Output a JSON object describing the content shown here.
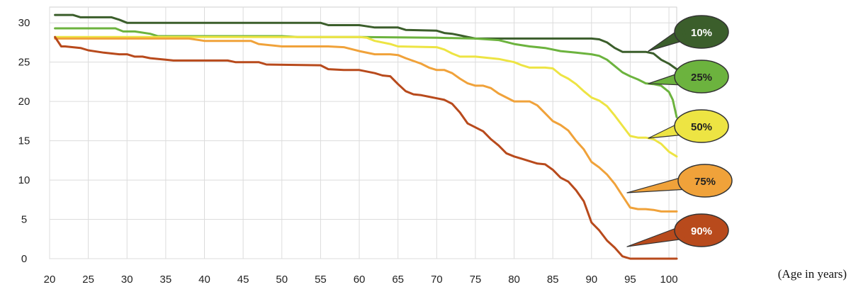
{
  "chart_data": {
    "type": "line",
    "title": "",
    "xlabel": "(Age in years)",
    "ylabel": "",
    "xlim": [
      20,
      101
    ],
    "ylim": [
      0,
      30
    ],
    "xticks": [
      20,
      25,
      30,
      35,
      40,
      45,
      50,
      55,
      60,
      65,
      70,
      75,
      80,
      85,
      90,
      95,
      100
    ],
    "yticks": [
      0,
      5,
      10,
      15,
      20,
      25,
      30
    ],
    "grid": true,
    "legend": "callouts-right",
    "series": [
      {
        "name": "10%",
        "color": "#3b5e2b",
        "label_color": "#ffffff",
        "x": [
          20.7,
          23,
          24,
          26,
          28,
          29,
          30,
          40,
          50,
          55,
          56,
          60,
          62,
          65,
          66,
          70,
          71,
          72,
          73,
          74,
          75,
          80,
          85,
          90,
          91,
          92,
          93,
          94,
          96,
          97,
          98,
          99,
          100,
          101
        ],
        "y": [
          31,
          31,
          30.7,
          30.7,
          30.7,
          30.4,
          30,
          30,
          30,
          30,
          29.7,
          29.7,
          29.4,
          29.4,
          29.1,
          29,
          28.7,
          28.6,
          28.4,
          28.2,
          28,
          28,
          28,
          28,
          27.9,
          27.5,
          26.8,
          26.3,
          26.3,
          26.3,
          26.1,
          25.3,
          24.8,
          24.1
        ]
      },
      {
        "name": "25%",
        "color": "#6cb33e",
        "label_color": "#222222",
        "x": [
          20.7,
          25,
          28.5,
          29.5,
          31,
          33,
          34,
          40,
          50,
          52,
          60,
          70,
          75,
          78,
          80,
          82,
          84,
          86,
          88,
          90,
          91,
          92,
          93,
          94,
          95,
          96,
          97,
          98,
          99,
          100,
          100.5,
          101
        ],
        "y": [
          29.3,
          29.3,
          29.3,
          28.9,
          28.9,
          28.6,
          28.3,
          28.3,
          28.3,
          28.2,
          28.2,
          28.1,
          28,
          27.8,
          27.3,
          27,
          26.8,
          26.4,
          26.2,
          26,
          25.8,
          25.3,
          24.5,
          23.7,
          23.2,
          22.8,
          22.3,
          22.2,
          22,
          21.2,
          20.2,
          18
        ]
      },
      {
        "name": "50%",
        "color": "#ede443",
        "label_color": "#222222",
        "x": [
          20.7,
          30,
          40,
          50,
          55,
          60,
          61,
          62,
          64,
          65,
          70,
          71,
          72,
          73,
          75,
          76,
          78,
          80,
          81,
          82,
          84,
          85,
          86,
          87,
          88,
          89,
          90,
          91,
          92,
          93,
          94,
          95,
          96,
          97,
          98,
          99,
          100,
          101
        ],
        "y": [
          28.2,
          28.2,
          28.2,
          28.2,
          28.2,
          28.2,
          28.1,
          27.7,
          27.3,
          27,
          26.9,
          26.6,
          26.1,
          25.7,
          25.7,
          25.6,
          25.4,
          25,
          24.6,
          24.3,
          24.3,
          24.2,
          23.4,
          22.9,
          22.2,
          21.3,
          20.5,
          20.1,
          19.4,
          18.2,
          16.9,
          15.6,
          15.4,
          15.4,
          15.2,
          14.6,
          13.6,
          13
        ]
      },
      {
        "name": "75%",
        "color": "#f0a23a",
        "label_color": "#222222",
        "x": [
          20.7,
          30,
          38,
          40,
          46,
          47,
          50,
          52,
          56,
          58,
          60,
          62,
          64,
          65,
          66,
          68,
          69,
          70,
          71,
          72,
          73,
          74,
          75,
          76,
          77,
          78,
          80,
          81,
          82,
          83,
          84,
          85,
          86,
          87,
          88,
          89,
          90,
          91,
          92,
          93,
          94,
          95,
          96,
          97,
          98,
          99,
          100,
          101
        ],
        "y": [
          28,
          28,
          28,
          27.7,
          27.7,
          27.3,
          27,
          27,
          27,
          26.9,
          26.4,
          26,
          26,
          25.9,
          25.5,
          24.8,
          24.3,
          24,
          24,
          23.6,
          22.9,
          22.3,
          22,
          22,
          21.7,
          21,
          20,
          20,
          20,
          19.5,
          18.5,
          17.5,
          17,
          16.3,
          15,
          13.9,
          12.3,
          11.6,
          10.7,
          9.5,
          8,
          6.5,
          6.3,
          6.3,
          6.2,
          6,
          6,
          6
        ]
      },
      {
        "name": "90%",
        "color": "#b84a1c",
        "label_color": "#ffffff",
        "x": [
          20.7,
          21.5,
          22,
          24,
          25,
          27,
          29,
          30,
          31,
          32,
          33,
          35,
          36,
          40,
          42,
          43,
          44,
          47,
          48,
          55,
          56,
          58,
          59,
          60,
          62,
          63,
          64,
          65,
          66,
          67,
          68,
          69,
          70,
          71,
          72,
          73,
          74,
          75,
          76,
          77,
          78,
          79,
          80,
          81,
          82,
          83,
          84,
          85,
          86,
          87,
          88,
          89,
          90,
          91,
          92,
          93,
          94,
          95,
          100,
          101
        ],
        "y": [
          28.2,
          27,
          27,
          26.8,
          26.5,
          26.2,
          26,
          26,
          25.7,
          25.7,
          25.5,
          25.3,
          25.2,
          25.2,
          25.2,
          25.2,
          25,
          25,
          24.7,
          24.6,
          24.1,
          24,
          24,
          24,
          23.6,
          23.3,
          23.2,
          22.2,
          21.3,
          20.9,
          20.8,
          20.6,
          20.4,
          20.2,
          19.7,
          18.6,
          17.2,
          16.7,
          16.2,
          15.2,
          14.4,
          13.4,
          13,
          12.7,
          12.4,
          12.1,
          12,
          11.3,
          10.3,
          9.8,
          8.7,
          7.3,
          4.6,
          3.6,
          2.3,
          1.4,
          0.3,
          0,
          0,
          0
        ]
      }
    ]
  }
}
